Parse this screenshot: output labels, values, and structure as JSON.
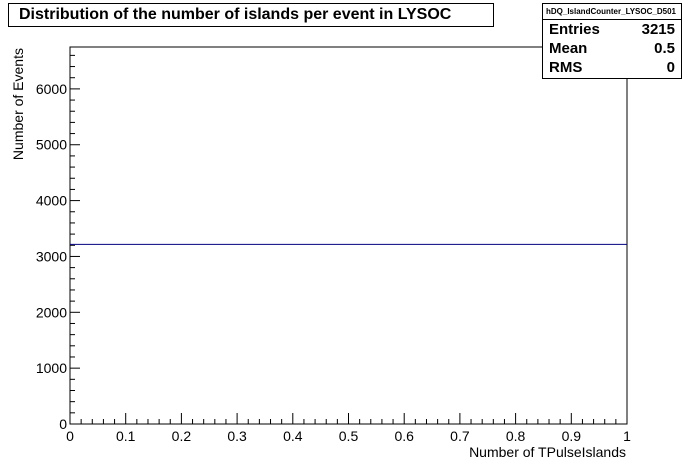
{
  "chart_data": {
    "type": "histogram",
    "title": "Distribution of the number of islands per event in LYSOC",
    "xlabel": "Number of TPulseIslands",
    "ylabel": "Number of Events",
    "xlim": [
      0,
      1
    ],
    "ylim": [
      0,
      6750
    ],
    "x_ticks": [
      "0",
      "0.1",
      "0.2",
      "0.3",
      "0.4",
      "0.5",
      "0.6",
      "0.7",
      "0.8",
      "0.9",
      "1"
    ],
    "y_ticks": [
      "0",
      "1000",
      "2000",
      "3000",
      "4000",
      "5000",
      "6000"
    ],
    "bins": [
      {
        "x_low": 0,
        "x_high": 1,
        "value": 3215
      }
    ],
    "line_color": "#000080",
    "grid": false,
    "stats": {
      "name": "hDQ_IslandCounter_LYSOC_D501",
      "rows": [
        {
          "label": "Entries",
          "value": "3215"
        },
        {
          "label": "Mean",
          "value": "0.5"
        },
        {
          "label": "RMS",
          "value": "0"
        }
      ]
    }
  }
}
